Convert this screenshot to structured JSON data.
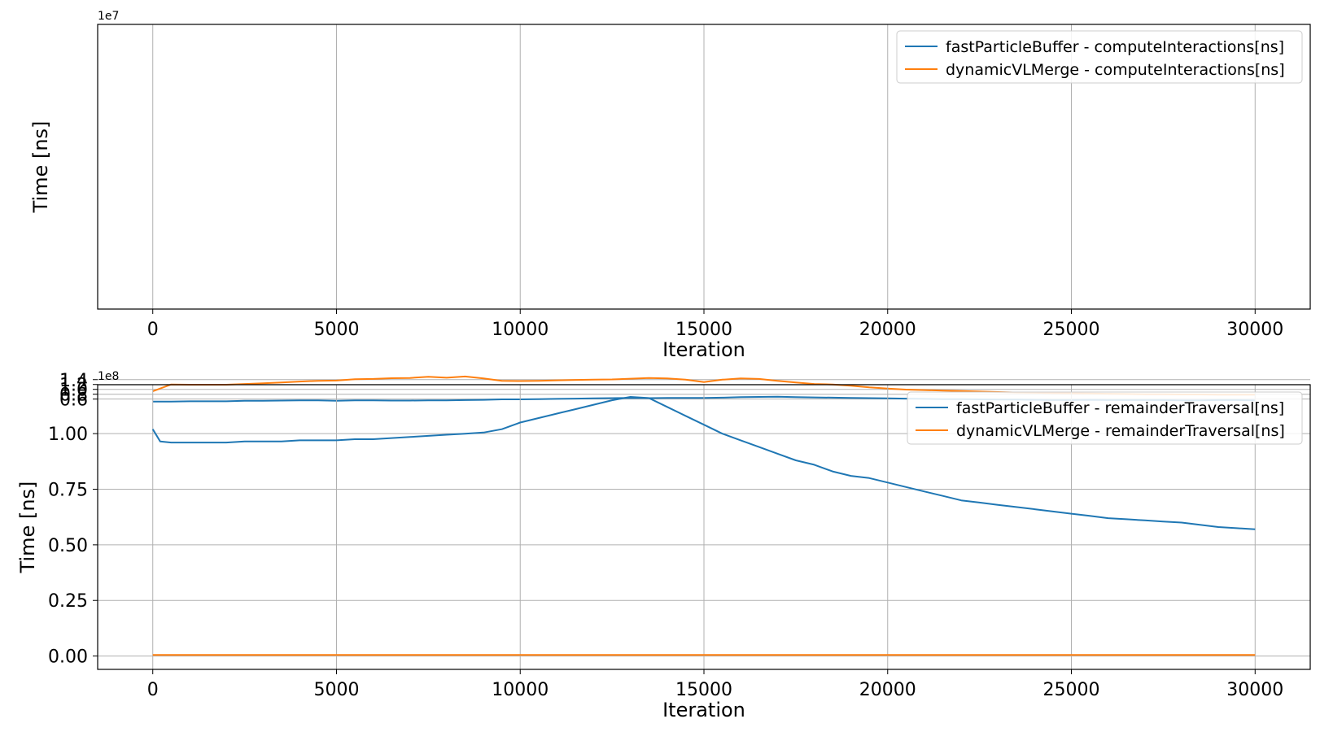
{
  "chart_data": [
    {
      "type": "line",
      "xlabel": "Iteration",
      "ylabel": "Time [ns]",
      "y_offset_label": "1e7",
      "y_scale": 10000000,
      "xlim": [
        -1500,
        31500
      ],
      "ylim": [
        4.3,
        16.0
      ],
      "xticks": [
        0,
        5000,
        10000,
        15000,
        20000,
        25000,
        30000
      ],
      "yticks": [
        0.6,
        0.8,
        1.0,
        1.2,
        1.4
      ],
      "grid": true,
      "legend_position": "top-right",
      "colors": [
        "#1f77b4",
        "#ff7f0e"
      ],
      "x": [
        0,
        500,
        1000,
        1500,
        2000,
        2500,
        3000,
        3500,
        4000,
        4500,
        5000,
        5500,
        6000,
        6500,
        7000,
        7500,
        8000,
        8500,
        9000,
        9500,
        10000,
        10500,
        11000,
        11500,
        12000,
        12500,
        13000,
        13500,
        14000,
        14500,
        15000,
        15500,
        16000,
        16500,
        17000,
        17500,
        18000,
        18500,
        19000,
        19500,
        20000,
        20500,
        21000,
        21500,
        22000,
        22500,
        23000,
        23500,
        24000,
        24500,
        25000,
        25500,
        26000,
        26500,
        27000,
        27500,
        28000,
        28500,
        29000,
        29500,
        30000
      ],
      "series": [
        {
          "name": "fastParticleBuffer - computeInteractions[ns]",
          "values": [
            0.5,
            0.5,
            0.51,
            0.51,
            0.51,
            0.53,
            0.53,
            0.54,
            0.55,
            0.55,
            0.53,
            0.55,
            0.55,
            0.54,
            0.54,
            0.55,
            0.55,
            0.56,
            0.57,
            0.59,
            0.59,
            0.6,
            0.61,
            0.62,
            0.63,
            0.64,
            0.65,
            0.64,
            0.65,
            0.65,
            0.65,
            0.66,
            0.68,
            0.69,
            0.7,
            0.68,
            0.67,
            0.66,
            0.65,
            0.64,
            0.63,
            0.62,
            0.61,
            0.6,
            0.6,
            0.59,
            0.58,
            0.58,
            0.57,
            0.56,
            0.56,
            0.57,
            0.56,
            0.56,
            0.56,
            0.56,
            0.55,
            0.55,
            0.56,
            0.56,
            0.55
          ]
        },
        {
          "name": "dynamicVLMerge - computeInteractions[ns]",
          "values": [
            0.92,
            1.2,
            1.19,
            1.19,
            1.19,
            1.22,
            1.25,
            1.28,
            1.32,
            1.35,
            1.36,
            1.42,
            1.43,
            1.46,
            1.47,
            1.52,
            1.48,
            1.53,
            1.45,
            1.35,
            1.34,
            1.35,
            1.37,
            1.39,
            1.4,
            1.41,
            1.44,
            1.47,
            1.45,
            1.4,
            1.3,
            1.4,
            1.45,
            1.43,
            1.35,
            1.28,
            1.22,
            1.2,
            1.15,
            1.08,
            1.03,
            0.99,
            0.97,
            0.95,
            0.93,
            0.91,
            0.89,
            0.87,
            0.86,
            0.85,
            0.84,
            0.83,
            0.82,
            0.81,
            0.8,
            0.8,
            0.79,
            0.79,
            0.78,
            0.78,
            0.78
          ]
        }
      ]
    },
    {
      "type": "line",
      "xlabel": "Iteration",
      "ylabel": "Time [ns]",
      "y_offset_label": "1e8",
      "y_scale": 100000000,
      "xlim": [
        -1500,
        31500
      ],
      "ylim": [
        -0.06,
        1.22
      ],
      "xticks": [
        0,
        5000,
        10000,
        15000,
        20000,
        25000,
        30000
      ],
      "yticks": [
        0.0,
        0.25,
        0.5,
        0.75,
        1.0
      ],
      "grid": true,
      "legend_position": "top-right",
      "colors": [
        "#1f77b4",
        "#ff7f0e"
      ],
      "x": [
        0,
        200,
        500,
        1000,
        1500,
        2000,
        2500,
        3000,
        3500,
        4000,
        4500,
        5000,
        5500,
        6000,
        6500,
        7000,
        7500,
        8000,
        8500,
        9000,
        9500,
        10000,
        10500,
        11000,
        11500,
        12000,
        12500,
        13000,
        13500,
        14000,
        14500,
        15000,
        15500,
        16000,
        16500,
        17000,
        17500,
        18000,
        18500,
        19000,
        19500,
        20000,
        20500,
        21000,
        21500,
        22000,
        22500,
        23000,
        23500,
        24000,
        24500,
        25000,
        25500,
        26000,
        26500,
        27000,
        27500,
        28000,
        28500,
        29000,
        29500,
        30000
      ],
      "series": [
        {
          "name": "fastParticleBuffer - remainderTraversal[ns]",
          "values": [
            1.02,
            0.965,
            0.96,
            0.96,
            0.96,
            0.96,
            0.965,
            0.965,
            0.965,
            0.97,
            0.97,
            0.97,
            0.975,
            0.975,
            0.98,
            0.985,
            0.99,
            0.995,
            1.0,
            1.005,
            1.02,
            1.05,
            1.07,
            1.09,
            1.11,
            1.13,
            1.15,
            1.165,
            1.16,
            1.12,
            1.08,
            1.04,
            1.0,
            0.97,
            0.94,
            0.91,
            0.88,
            0.86,
            0.83,
            0.81,
            0.8,
            0.78,
            0.76,
            0.74,
            0.72,
            0.7,
            0.69,
            0.68,
            0.67,
            0.66,
            0.65,
            0.64,
            0.63,
            0.62,
            0.615,
            0.61,
            0.605,
            0.6,
            0.59,
            0.58,
            0.575,
            0.57
          ]
        },
        {
          "name": "dynamicVLMerge - remainderTraversal[ns]",
          "values": [
            0.005,
            0.005,
            0.005,
            0.005,
            0.005,
            0.005,
            0.005,
            0.005,
            0.005,
            0.005,
            0.005,
            0.005,
            0.005,
            0.005,
            0.005,
            0.005,
            0.005,
            0.005,
            0.005,
            0.005,
            0.005,
            0.005,
            0.005,
            0.005,
            0.005,
            0.005,
            0.005,
            0.005,
            0.005,
            0.005,
            0.005,
            0.005,
            0.005,
            0.005,
            0.005,
            0.005,
            0.005,
            0.005,
            0.005,
            0.005,
            0.005,
            0.005,
            0.005,
            0.005,
            0.005,
            0.005,
            0.005,
            0.005,
            0.005,
            0.005,
            0.005,
            0.005,
            0.005,
            0.005,
            0.005,
            0.005,
            0.005,
            0.005,
            0.005,
            0.005,
            0.005,
            0.005
          ]
        }
      ]
    }
  ]
}
